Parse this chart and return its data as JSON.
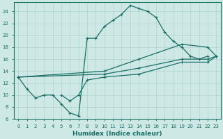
{
  "xlabel": "Humidex (Indice chaleur)",
  "background_color": "#cde8e5",
  "grid_color": "#afd4d0",
  "line_color": "#1a6e64",
  "xlim": [
    -0.5,
    23.5
  ],
  "ylim": [
    6,
    25.5
  ],
  "yticks": [
    6,
    8,
    10,
    12,
    14,
    16,
    18,
    20,
    22,
    24
  ],
  "xticks": [
    0,
    1,
    2,
    3,
    4,
    5,
    6,
    7,
    8,
    9,
    10,
    11,
    12,
    13,
    14,
    15,
    16,
    17,
    18,
    19,
    20,
    21,
    22,
    23
  ],
  "line1_x": [
    0,
    1,
    2,
    3,
    4,
    5,
    6,
    7,
    8,
    9,
    10,
    11,
    12,
    13,
    14,
    15,
    16,
    17,
    18,
    19,
    20,
    21,
    22
  ],
  "line1_y": [
    13,
    11,
    9.5,
    10,
    10,
    8.5,
    7,
    6.5,
    19.5,
    19.5,
    21.5,
    22.5,
    23.5,
    25,
    24.5,
    24,
    23,
    20.5,
    19,
    18,
    16.5,
    16,
    16.5
  ],
  "line2_x": [
    0,
    10,
    14,
    19,
    22,
    23
  ],
  "line2_y": [
    13,
    13.5,
    14.5,
    16,
    16,
    16.5
  ],
  "line3_x": [
    0,
    10,
    14,
    19,
    22,
    23
  ],
  "line3_y": [
    13,
    14,
    16,
    18.5,
    18,
    16.5
  ],
  "line4_x": [
    5,
    6,
    7,
    8,
    10,
    14,
    19,
    22,
    23
  ],
  "line4_y": [
    10,
    9,
    10,
    12.5,
    13,
    13.5,
    15.5,
    15.5,
    16.5
  ]
}
